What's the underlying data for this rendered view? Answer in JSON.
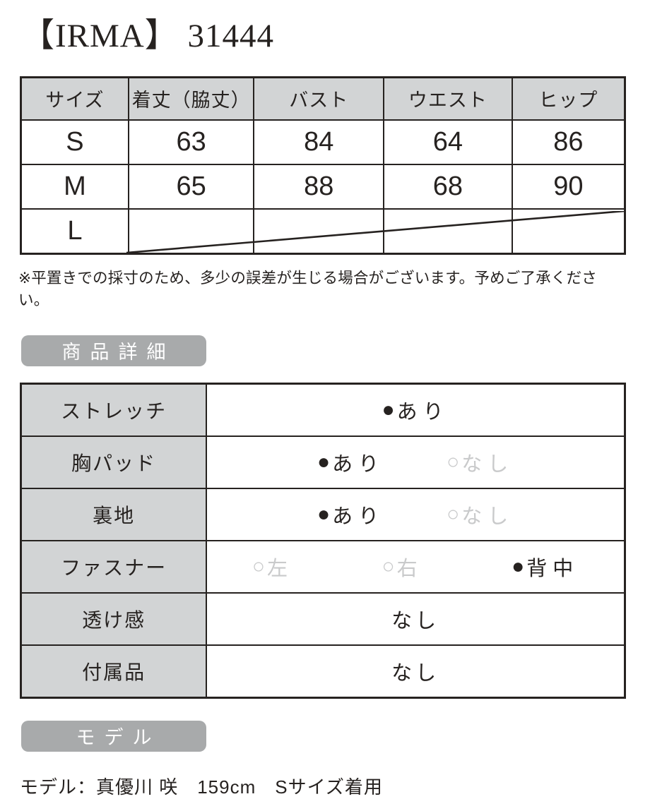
{
  "page": {
    "title": "【IRMA】 31444",
    "note": "※平置きでの採寸のため、多少の誤差が生じる場合がございます。予めご了承ください。"
  },
  "size_table": {
    "headers": [
      "サイズ",
      "着丈（脇丈）",
      "バスト",
      "ウエスト",
      "ヒップ"
    ],
    "rows": [
      {
        "size": "S",
        "values": [
          "63",
          "84",
          "64",
          "86"
        ],
        "crossed_out": false
      },
      {
        "size": "M",
        "values": [
          "65",
          "88",
          "68",
          "90"
        ],
        "crossed_out": false
      },
      {
        "size": "L",
        "values": [
          "",
          "",
          "",
          ""
        ],
        "crossed_out": true
      }
    ]
  },
  "detail_section": {
    "heading": "商品詳細",
    "rows": [
      {
        "label": "ストレッチ",
        "options": [
          {
            "bullet": "filled",
            "text": "あり"
          }
        ]
      },
      {
        "label": "胸パッド",
        "options": [
          {
            "bullet": "filled",
            "text": "あり"
          },
          {
            "bullet": "empty",
            "text": "なし"
          }
        ]
      },
      {
        "label": "裏地",
        "options": [
          {
            "bullet": "filled",
            "text": "あり"
          },
          {
            "bullet": "empty",
            "text": "なし"
          }
        ]
      },
      {
        "label": "ファスナー",
        "options": [
          {
            "bullet": "empty",
            "text": "左"
          },
          {
            "bullet": "empty",
            "text": "右"
          },
          {
            "bullet": "filled",
            "text": "背中"
          }
        ]
      },
      {
        "label": "透け感",
        "options": [
          {
            "bullet": "none",
            "text": "なし"
          }
        ]
      },
      {
        "label": "付属品",
        "options": [
          {
            "bullet": "none",
            "text": "なし"
          }
        ]
      }
    ]
  },
  "model_section": {
    "heading": "モデル",
    "info": "モデル：真優川 咲　159cm　Sサイズ着用"
  },
  "icons": {
    "selected_bullet": "●",
    "unselected_bullet": "○"
  },
  "colors": {
    "ink": "#262220",
    "table_header_bg": "#d2d4d5",
    "badge_bg": "#a8aaab",
    "unselected_text": "#c9cacb"
  }
}
